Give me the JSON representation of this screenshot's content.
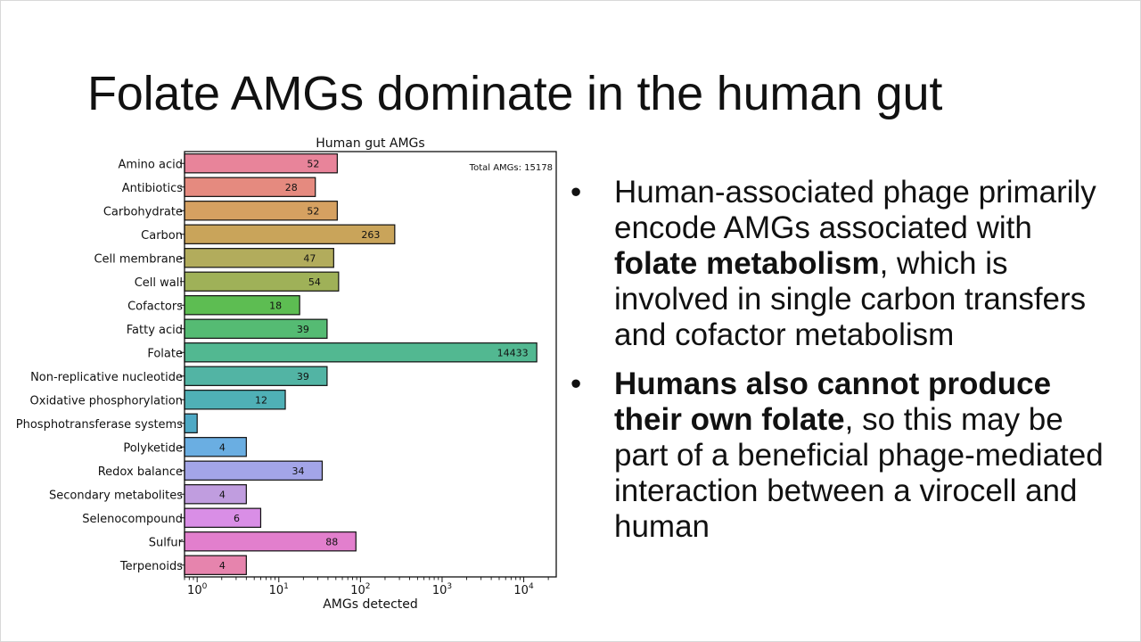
{
  "slide": {
    "title": "Folate AMGs dominate in the human gut"
  },
  "chart_data": {
    "type": "bar",
    "orientation": "horizontal",
    "title": "Human gut AMGs",
    "xlabel": "AMGs detected",
    "ylabel": "",
    "xscale": "log",
    "xlim": [
      0.7,
      25000
    ],
    "x_ticks": [
      {
        "value": 1,
        "base": "10",
        "exp": "0"
      },
      {
        "value": 10,
        "base": "10",
        "exp": "1"
      },
      {
        "value": 100,
        "base": "10",
        "exp": "2"
      },
      {
        "value": 1000,
        "base": "10",
        "exp": "3"
      },
      {
        "value": 10000,
        "base": "10",
        "exp": "4"
      }
    ],
    "annotation": "Total AMGs: 15178",
    "grid": false,
    "categories": [
      "Amino acid",
      "Antibiotics",
      "Carbohydrate",
      "Carbon",
      "Cell membrane",
      "Cell wall",
      "Cofactors",
      "Fatty acid",
      "Folate",
      "Non-replicative nucleotide",
      "Oxidative phosphorylation",
      "Phosphotransferase systems",
      "Polyketide",
      "Redox balance",
      "Secondary metabolites",
      "Selenocompound",
      "Sulfur",
      "Terpenoids"
    ],
    "values": [
      52,
      28,
      52,
      263,
      47,
      54,
      18,
      39,
      14433,
      39,
      12,
      1,
      4,
      34,
      4,
      6,
      88,
      4
    ],
    "value_labels": [
      "52",
      "28",
      "52",
      "263",
      "47",
      "54",
      "18",
      "39",
      "14433",
      "39",
      "12",
      "",
      "4",
      "34",
      "4",
      "6",
      "88",
      "4"
    ],
    "colors": [
      "#e8849a",
      "#e58a7f",
      "#d6a161",
      "#c9a45a",
      "#b2ac5c",
      "#9fb158",
      "#5dbd52",
      "#55bb73",
      "#52b891",
      "#52b4a4",
      "#4fb0b6",
      "#4ea9c5",
      "#6aaee2",
      "#a3a5e8",
      "#c09ddf",
      "#d98ee6",
      "#e27fcd",
      "#e684ad"
    ]
  },
  "bullets": [
    {
      "parts": [
        {
          "text": "Human-associated phage primarily encode AMGs associated with ",
          "bold": false
        },
        {
          "text": "folate metabolism",
          "bold": true
        },
        {
          "text": ", which is involved in single carbon transfers and cofactor metabolism",
          "bold": false
        }
      ]
    },
    {
      "parts": [
        {
          "text": "Humans also cannot produce their own folate",
          "bold": true
        },
        {
          "text": ", so this may be part of a beneficial phage-mediated interaction between a virocell and human",
          "bold": false
        }
      ]
    }
  ],
  "bullet_glyph": "•"
}
